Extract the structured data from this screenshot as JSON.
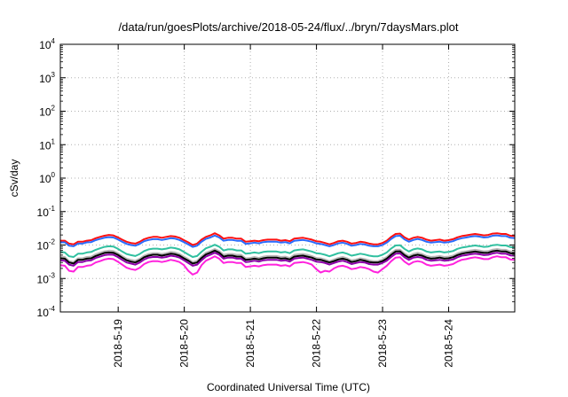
{
  "chart_data": {
    "type": "line",
    "title": "/data/run/goesPlots/archive/2018-05-24/flux/../bryn/7daysMars.plot",
    "xlabel": "Coordinated Universal Time (UTC)",
    "ylabel": "cSv/day",
    "yscale": "log",
    "ylim": [
      0.0001,
      10000
    ],
    "y_ticks": [
      {
        "base": "10",
        "exp": "-4"
      },
      {
        "base": "10",
        "exp": "-3"
      },
      {
        "base": "10",
        "exp": "-2"
      },
      {
        "base": "10",
        "exp": "-1"
      },
      {
        "base": "10",
        "exp": "0"
      },
      {
        "base": "10",
        "exp": "1"
      },
      {
        "base": "10",
        "exp": "2"
      },
      {
        "base": "10",
        "exp": "3"
      },
      {
        "base": "10",
        "exp": "4"
      }
    ],
    "xlim": [
      "2018-05-18 03:00",
      "2018-05-25 00:00"
    ],
    "x_ticks": [
      "2018-5-19",
      "2018-5-20",
      "2018-5-21",
      "2018-5-22",
      "2018-5-23",
      "2018-5-24"
    ],
    "grid": true,
    "series": [
      {
        "color": "#ff1010",
        "width": 2,
        "values": [
          0.0135,
          0.0135,
          0.011,
          0.0105,
          0.0125,
          0.0125,
          0.0135,
          0.014,
          0.016,
          0.0175,
          0.019,
          0.02,
          0.0195,
          0.017,
          0.0145,
          0.0125,
          0.0115,
          0.011,
          0.0125,
          0.015,
          0.0165,
          0.0175,
          0.0175,
          0.0165,
          0.0175,
          0.0185,
          0.018,
          0.0165,
          0.014,
          0.012,
          0.01,
          0.011,
          0.0145,
          0.0175,
          0.0195,
          0.0225,
          0.0195,
          0.0155,
          0.0165,
          0.0165,
          0.0155,
          0.0155,
          0.0125,
          0.013,
          0.0135,
          0.013,
          0.014,
          0.0145,
          0.0145,
          0.0145,
          0.0135,
          0.014,
          0.013,
          0.0155,
          0.016,
          0.0165,
          0.0155,
          0.0145,
          0.013,
          0.0125,
          0.0115,
          0.0105,
          0.0115,
          0.013,
          0.0135,
          0.0125,
          0.011,
          0.0115,
          0.0125,
          0.012,
          0.011,
          0.0105,
          0.0105,
          0.0115,
          0.0135,
          0.0175,
          0.0215,
          0.022,
          0.017,
          0.0145,
          0.0165,
          0.0175,
          0.0165,
          0.0145,
          0.0135,
          0.014,
          0.0145,
          0.0135,
          0.014,
          0.015,
          0.017,
          0.0185,
          0.0195,
          0.0205,
          0.0215,
          0.0205,
          0.0195,
          0.02,
          0.022,
          0.0225,
          0.0215,
          0.0215,
          0.019,
          0.0185
        ]
      },
      {
        "color": "#2a6cff",
        "width": 2,
        "values": [
          0.012,
          0.012,
          0.0095,
          0.0092,
          0.011,
          0.011,
          0.012,
          0.0122,
          0.014,
          0.0152,
          0.0165,
          0.0172,
          0.0168,
          0.0148,
          0.0125,
          0.0108,
          0.01,
          0.0095,
          0.0108,
          0.013,
          0.0142,
          0.015,
          0.015,
          0.0142,
          0.015,
          0.016,
          0.0155,
          0.0142,
          0.0122,
          0.0104,
          0.0088,
          0.0095,
          0.0125,
          0.0152,
          0.0168,
          0.0192,
          0.0168,
          0.0134,
          0.0142,
          0.0142,
          0.0134,
          0.0134,
          0.0108,
          0.0112,
          0.0118,
          0.0112,
          0.0122,
          0.0125,
          0.0125,
          0.0125,
          0.0118,
          0.0122,
          0.0112,
          0.0134,
          0.0138,
          0.0142,
          0.0134,
          0.0125,
          0.0112,
          0.0108,
          0.01,
          0.0092,
          0.01,
          0.0112,
          0.0118,
          0.0108,
          0.0095,
          0.01,
          0.0108,
          0.0104,
          0.0095,
          0.0092,
          0.0092,
          0.01,
          0.0118,
          0.0152,
          0.0185,
          0.019,
          0.0148,
          0.0125,
          0.0142,
          0.0152,
          0.0142,
          0.0125,
          0.0118,
          0.0122,
          0.0125,
          0.0118,
          0.0122,
          0.013,
          0.0148,
          0.016,
          0.0168,
          0.0178,
          0.0185,
          0.0178,
          0.0168,
          0.0172,
          0.019,
          0.0195,
          0.0185,
          0.0185,
          0.0165,
          0.016
        ]
      },
      {
        "color": "#30c0a0",
        "width": 2,
        "values": [
          0.0062,
          0.006,
          0.0046,
          0.0044,
          0.0055,
          0.0055,
          0.006,
          0.0062,
          0.0072,
          0.008,
          0.0088,
          0.0092,
          0.009,
          0.0078,
          0.0064,
          0.0054,
          0.005,
          0.0047,
          0.0054,
          0.0066,
          0.0074,
          0.0078,
          0.0078,
          0.0074,
          0.0078,
          0.0084,
          0.0081,
          0.0074,
          0.0062,
          0.0052,
          0.0044,
          0.0047,
          0.0063,
          0.008,
          0.0089,
          0.0102,
          0.0089,
          0.0069,
          0.0074,
          0.0074,
          0.0069,
          0.0069,
          0.0055,
          0.0057,
          0.006,
          0.0057,
          0.0062,
          0.0064,
          0.0064,
          0.0064,
          0.006,
          0.0062,
          0.0057,
          0.0069,
          0.0072,
          0.0074,
          0.0069,
          0.0064,
          0.0057,
          0.0055,
          0.0051,
          0.0046,
          0.0051,
          0.0057,
          0.006,
          0.0055,
          0.0048,
          0.0051,
          0.0055,
          0.0052,
          0.0048,
          0.0046,
          0.0046,
          0.0051,
          0.006,
          0.0079,
          0.0097,
          0.0099,
          0.0077,
          0.0064,
          0.0074,
          0.0079,
          0.0074,
          0.0064,
          0.006,
          0.0062,
          0.0064,
          0.006,
          0.0062,
          0.0066,
          0.0077,
          0.0084,
          0.0088,
          0.0093,
          0.0097,
          0.0093,
          0.0088,
          0.009,
          0.0099,
          0.0102,
          0.0097,
          0.0097,
          0.0087,
          0.0084
        ]
      },
      {
        "color": "#b8b8b8",
        "width": 2,
        "values": [
          0.0045,
          0.0044,
          0.0033,
          0.0031,
          0.004,
          0.004,
          0.0044,
          0.0045,
          0.0053,
          0.0059,
          0.0065,
          0.0068,
          0.0066,
          0.0057,
          0.0047,
          0.0039,
          0.0036,
          0.0034,
          0.0039,
          0.0048,
          0.0054,
          0.0057,
          0.0057,
          0.0054,
          0.0057,
          0.0062,
          0.006,
          0.0054,
          0.0045,
          0.0038,
          0.0031,
          0.0034,
          0.0046,
          0.0059,
          0.0066,
          0.0076,
          0.0066,
          0.0051,
          0.0054,
          0.0054,
          0.0051,
          0.0051,
          0.004,
          0.0041,
          0.0044,
          0.0041,
          0.0045,
          0.0047,
          0.0047,
          0.0047,
          0.0044,
          0.0045,
          0.0041,
          0.0051,
          0.0053,
          0.0054,
          0.0051,
          0.0047,
          0.0041,
          0.004,
          0.0037,
          0.0033,
          0.0037,
          0.0041,
          0.0044,
          0.004,
          0.0035,
          0.0037,
          0.004,
          0.0038,
          0.0035,
          0.0033,
          0.0033,
          0.0037,
          0.0044,
          0.0058,
          0.0072,
          0.0073,
          0.0056,
          0.0047,
          0.0054,
          0.0058,
          0.0054,
          0.0047,
          0.0044,
          0.0045,
          0.0047,
          0.0044,
          0.0045,
          0.0048,
          0.0056,
          0.0062,
          0.0065,
          0.0069,
          0.0072,
          0.0069,
          0.0065,
          0.0066,
          0.0073,
          0.0076,
          0.0072,
          0.0072,
          0.0064,
          0.0062
        ]
      },
      {
        "color": "#000000",
        "width": 2,
        "values": [
          0.004,
          0.0039,
          0.003,
          0.0028,
          0.0036,
          0.0036,
          0.0039,
          0.004,
          0.0047,
          0.0052,
          0.0058,
          0.006,
          0.0059,
          0.0051,
          0.0042,
          0.0035,
          0.0032,
          0.003,
          0.0035,
          0.0043,
          0.0048,
          0.0051,
          0.0051,
          0.0048,
          0.0051,
          0.0055,
          0.0053,
          0.0048,
          0.004,
          0.0034,
          0.0028,
          0.003,
          0.0041,
          0.0052,
          0.0059,
          0.0068,
          0.0059,
          0.0045,
          0.0048,
          0.0048,
          0.0045,
          0.0045,
          0.0036,
          0.0037,
          0.0039,
          0.0037,
          0.004,
          0.0042,
          0.0042,
          0.0042,
          0.0039,
          0.004,
          0.0037,
          0.0045,
          0.0047,
          0.0048,
          0.0045,
          0.0042,
          0.0037,
          0.0036,
          0.0033,
          0.003,
          0.0033,
          0.0037,
          0.0039,
          0.0036,
          0.0031,
          0.0033,
          0.0036,
          0.0034,
          0.0031,
          0.003,
          0.003,
          0.0033,
          0.0039,
          0.0051,
          0.0064,
          0.0065,
          0.005,
          0.0042,
          0.0048,
          0.0051,
          0.0048,
          0.0042,
          0.0039,
          0.004,
          0.0042,
          0.0039,
          0.004,
          0.0043,
          0.005,
          0.0055,
          0.0058,
          0.0061,
          0.0064,
          0.0061,
          0.0058,
          0.0059,
          0.0065,
          0.0068,
          0.0064,
          0.0064,
          0.0057,
          0.0055
        ]
      },
      {
        "color": "#8b00a8",
        "width": 2,
        "values": [
          0.0035,
          0.0034,
          0.0026,
          0.0024,
          0.0031,
          0.0031,
          0.0034,
          0.0035,
          0.0041,
          0.0045,
          0.005,
          0.0052,
          0.0051,
          0.0044,
          0.0036,
          0.003,
          0.0028,
          0.0026,
          0.003,
          0.0037,
          0.0042,
          0.0044,
          0.0044,
          0.0042,
          0.0044,
          0.0048,
          0.0046,
          0.0042,
          0.0035,
          0.0029,
          0.0024,
          0.0026,
          0.0035,
          0.0045,
          0.0051,
          0.0059,
          0.0051,
          0.0039,
          0.0042,
          0.0042,
          0.0039,
          0.0039,
          0.0031,
          0.0032,
          0.0034,
          0.0032,
          0.0035,
          0.0036,
          0.0036,
          0.0036,
          0.0034,
          0.0035,
          0.0032,
          0.0039,
          0.0041,
          0.0042,
          0.0039,
          0.0036,
          0.0032,
          0.0031,
          0.0029,
          0.0026,
          0.0029,
          0.0032,
          0.0034,
          0.0031,
          0.0027,
          0.0029,
          0.0031,
          0.003,
          0.0027,
          0.0026,
          0.0026,
          0.0029,
          0.0034,
          0.0044,
          0.0055,
          0.0056,
          0.0043,
          0.0036,
          0.0042,
          0.0044,
          0.0042,
          0.0036,
          0.0034,
          0.0035,
          0.0036,
          0.0034,
          0.0035,
          0.0037,
          0.0043,
          0.0048,
          0.005,
          0.0053,
          0.0055,
          0.0053,
          0.005,
          0.0051,
          0.0056,
          0.0059,
          0.0055,
          0.0055,
          0.0049,
          0.0048
        ]
      },
      {
        "color": "#ff22dd",
        "width": 2,
        "values": [
          0.0025,
          0.0024,
          0.0017,
          0.0016,
          0.0022,
          0.0022,
          0.0024,
          0.0025,
          0.003,
          0.0033,
          0.0037,
          0.0039,
          0.0038,
          0.0032,
          0.0026,
          0.0021,
          0.0019,
          0.0018,
          0.0021,
          0.0027,
          0.0031,
          0.0033,
          0.0033,
          0.0031,
          0.0033,
          0.0036,
          0.0034,
          0.0031,
          0.0025,
          0.0017,
          0.0013,
          0.0015,
          0.0025,
          0.0034,
          0.0039,
          0.0046,
          0.0039,
          0.0029,
          0.0031,
          0.0031,
          0.0029,
          0.0029,
          0.0022,
          0.0023,
          0.0024,
          0.0023,
          0.0025,
          0.0026,
          0.0026,
          0.0026,
          0.0024,
          0.0025,
          0.0023,
          0.0029,
          0.003,
          0.0031,
          0.0029,
          0.0026,
          0.0019,
          0.0015,
          0.0017,
          0.0016,
          0.002,
          0.0023,
          0.0024,
          0.0022,
          0.0019,
          0.002,
          0.0022,
          0.0021,
          0.0019,
          0.0016,
          0.0015,
          0.0019,
          0.0024,
          0.0033,
          0.0042,
          0.0043,
          0.0032,
          0.0026,
          0.0031,
          0.0033,
          0.0031,
          0.0026,
          0.0024,
          0.0025,
          0.0026,
          0.0024,
          0.0025,
          0.0027,
          0.0032,
          0.0036,
          0.0038,
          0.0041,
          0.0043,
          0.0041,
          0.0038,
          0.0038,
          0.0043,
          0.0046,
          0.0043,
          0.0043,
          0.0037,
          0.0036
        ]
      }
    ]
  }
}
